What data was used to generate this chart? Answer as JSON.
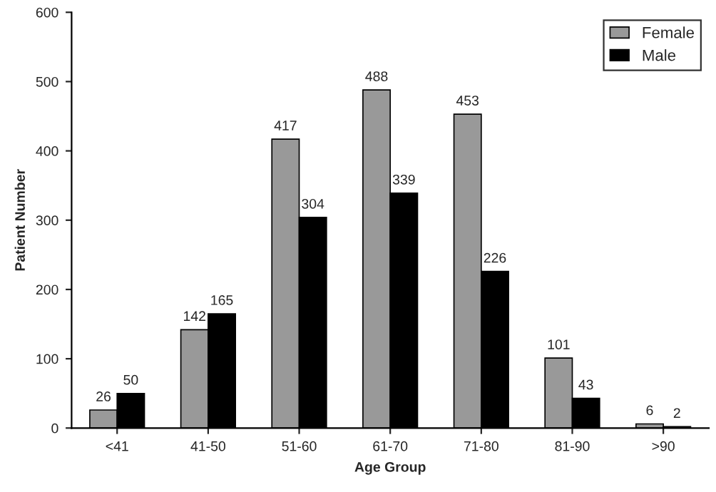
{
  "chart_data": {
    "type": "bar",
    "xlabel": "Age Group",
    "ylabel": "Patient Number",
    "categories": [
      "<41",
      "41-50",
      "51-60",
      "61-70",
      "71-80",
      "81-90",
      ">90"
    ],
    "series": [
      {
        "name": "Female",
        "color": "#999999",
        "values": [
          26,
          142,
          417,
          488,
          453,
          101,
          6
        ]
      },
      {
        "name": "Male",
        "color": "#000000",
        "values": [
          50,
          165,
          304,
          339,
          226,
          43,
          2
        ]
      }
    ],
    "ylim": [
      0,
      600
    ],
    "yticks": [
      0,
      100,
      200,
      300,
      400,
      500,
      600
    ],
    "grid": false,
    "legend": "top right",
    "data_labels": true
  }
}
